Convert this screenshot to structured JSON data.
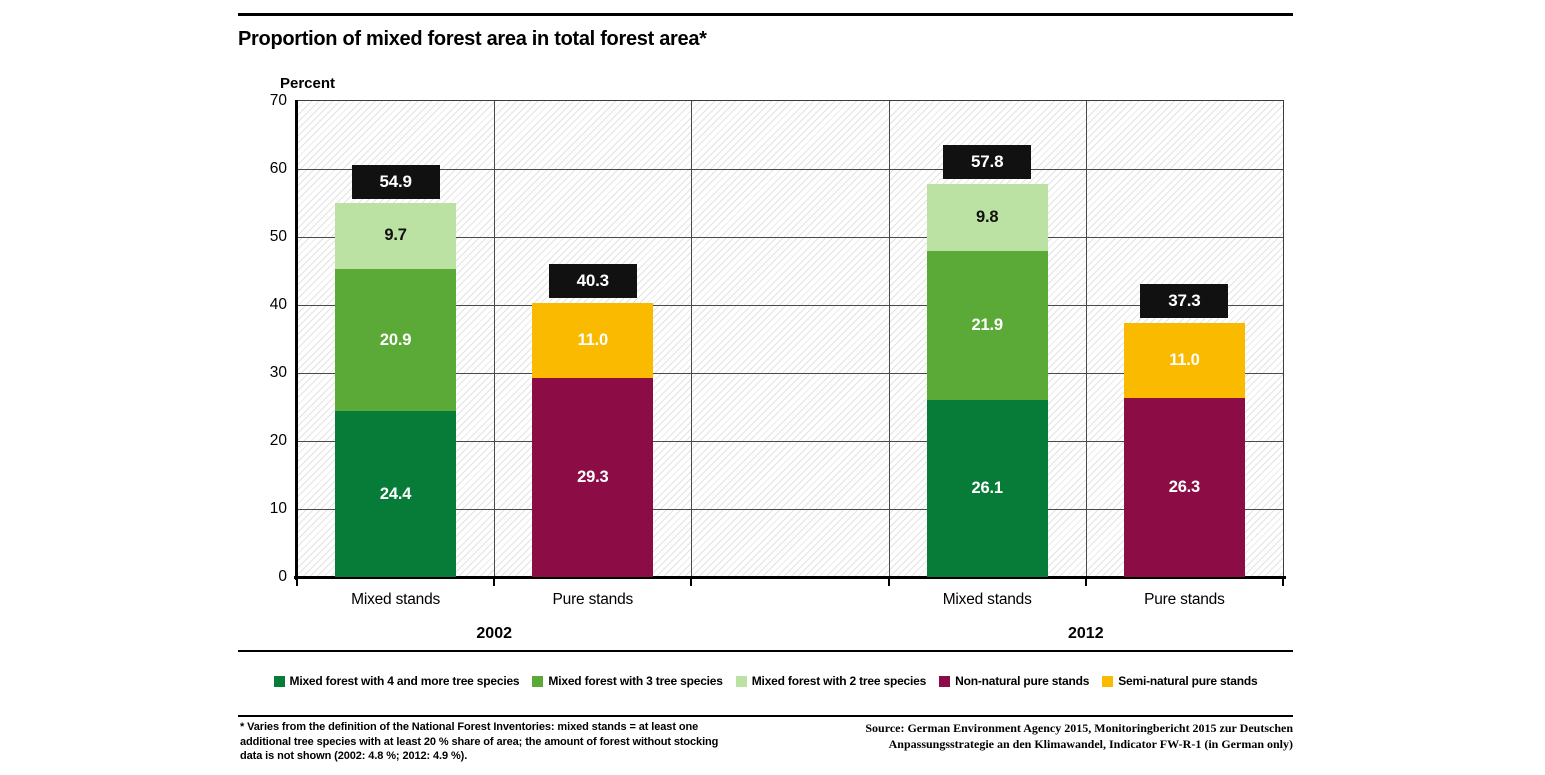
{
  "header": {
    "title": "Proportion of mixed forest area in total forest area*"
  },
  "chart_data": {
    "type": "bar",
    "stacked": true,
    "ylabel": "Percent",
    "ylim": [
      0,
      70
    ],
    "y_ticks": [
      "0",
      "10",
      "20",
      "30",
      "40",
      "50",
      "60",
      "70"
    ],
    "grid": true,
    "legend_position": "bottom",
    "groups": [
      {
        "year": "2002",
        "bars": [
          {
            "category": "Mixed stands",
            "total": 54.9,
            "total_label": "54.9",
            "segments": [
              {
                "name": "Mixed forest with 4 and more tree species",
                "value": 24.4,
                "label": "24.4",
                "color": "#077c38",
                "label_color": "#ffffff"
              },
              {
                "name": "Mixed forest with 3 tree species",
                "value": 20.9,
                "label": "20.9",
                "color": "#5baa37",
                "label_color": "#ffffff"
              },
              {
                "name": "Mixed forest with 2 tree species",
                "value": 9.7,
                "label": "9.7",
                "color": "#bce2a3",
                "label_color": "#111111"
              }
            ]
          },
          {
            "category": "Pure stands",
            "total": 40.3,
            "total_label": "40.3",
            "segments": [
              {
                "name": "Non-natural pure stands",
                "value": 29.3,
                "label": "29.3",
                "color": "#8c0d45",
                "label_color": "#ffffff"
              },
              {
                "name": "Semi-natural pure stands",
                "value": 11.0,
                "label": "11.0",
                "color": "#f9ba00",
                "label_color": "#ffffff"
              }
            ]
          }
        ]
      },
      {
        "year": "2012",
        "bars": [
          {
            "category": "Mixed stands",
            "total": 57.8,
            "total_label": "57.8",
            "segments": [
              {
                "name": "Mixed forest with 4 and more tree species",
                "value": 26.1,
                "label": "26.1",
                "color": "#077c38",
                "label_color": "#ffffff"
              },
              {
                "name": "Mixed forest with 3 tree species",
                "value": 21.9,
                "label": "21.9",
                "color": "#5baa37",
                "label_color": "#ffffff"
              },
              {
                "name": "Mixed forest with 2 tree species",
                "value": 9.8,
                "label": "9.8",
                "color": "#bce2a3",
                "label_color": "#111111"
              }
            ]
          },
          {
            "category": "Pure stands",
            "total": 37.3,
            "total_label": "37.3",
            "segments": [
              {
                "name": "Non-natural pure stands",
                "value": 26.3,
                "label": "26.3",
                "color": "#8c0d45",
                "label_color": "#ffffff"
              },
              {
                "name": "Semi-natural pure stands",
                "value": 11.0,
                "label": "11.0",
                "color": "#f9ba00",
                "label_color": "#ffffff"
              }
            ]
          }
        ]
      }
    ],
    "legend": [
      {
        "label": "Mixed forest with 4 and more tree species",
        "color": "#077c38"
      },
      {
        "label": "Mixed forest with 3 tree species",
        "color": "#5baa37"
      },
      {
        "label": "Mixed forest with 2 tree species",
        "color": "#bce2a3"
      },
      {
        "label": "Non-natural pure stands",
        "color": "#8c0d45"
      },
      {
        "label": "Semi-natural pure stands",
        "color": "#f9ba00"
      }
    ]
  },
  "colors": {
    "badge_bg": "#111111",
    "badge_text": "#ffffff",
    "grid_line": "#4a4a4a",
    "hatch_line": "#e3e3e3",
    "rule": "#000000"
  },
  "footnote": {
    "lines": [
      "* Varies from the definition of the National Forest Inventories: mixed stands = at least one",
      "additional tree species with at least 20 % share of area; the amount of forest without stocking",
      "data is not shown (2002: 4.8 %; 2012: 4.9 %)."
    ]
  },
  "source": {
    "lines": [
      "Source: German Environment Agency 2015, Monitoringbericht 2015 zur Deutschen",
      "Anpassungsstrategie an den Klimawandel, Indicator FW-R-1 (in German only)"
    ]
  }
}
